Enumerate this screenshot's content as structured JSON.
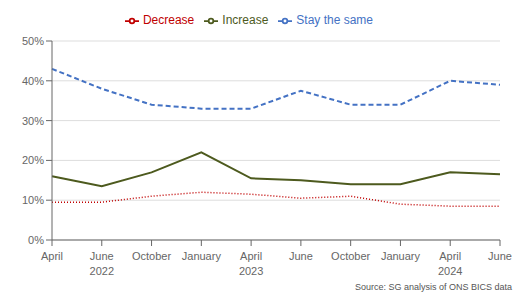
{
  "chart_data": {
    "type": "line",
    "categories": [
      "April",
      "June",
      "October",
      "January",
      "April",
      "June",
      "October",
      "January",
      "April",
      "June"
    ],
    "series": [
      {
        "name": "Increase",
        "color": "#4d5a1e",
        "line_style": "solid",
        "values": [
          16,
          13.5,
          17,
          22,
          15.5,
          15,
          14,
          14,
          17,
          16.5
        ]
      },
      {
        "name": "Stay the same",
        "color": "#4472c4",
        "line_style": "dashed",
        "values": [
          43,
          38,
          34,
          33,
          33,
          37.5,
          34,
          34,
          40,
          39
        ]
      },
      {
        "name": "Decrease",
        "color": "#c00000",
        "line_style": "dotted",
        "values": [
          9.5,
          9.5,
          11,
          12,
          11.5,
          10.5,
          11,
          9,
          8.5,
          8.5
        ]
      }
    ],
    "ylim": [
      0,
      50
    ],
    "yticks": [
      {
        "value": 0,
        "label": "0%"
      },
      {
        "value": 10,
        "label": "10%"
      },
      {
        "value": 20,
        "label": "20%"
      },
      {
        "value": 30,
        "label": "30%"
      },
      {
        "value": 40,
        "label": "40%"
      },
      {
        "value": 50,
        "label": "50%"
      }
    ],
    "grid": true,
    "legend": "top",
    "annotations": [
      {
        "text": "2022",
        "x": 1
      },
      {
        "text": "2023",
        "x": 4
      },
      {
        "text": "2024",
        "x": 8
      },
      {
        "text": "Source: SG analysis of ONS BICS data"
      }
    ]
  }
}
